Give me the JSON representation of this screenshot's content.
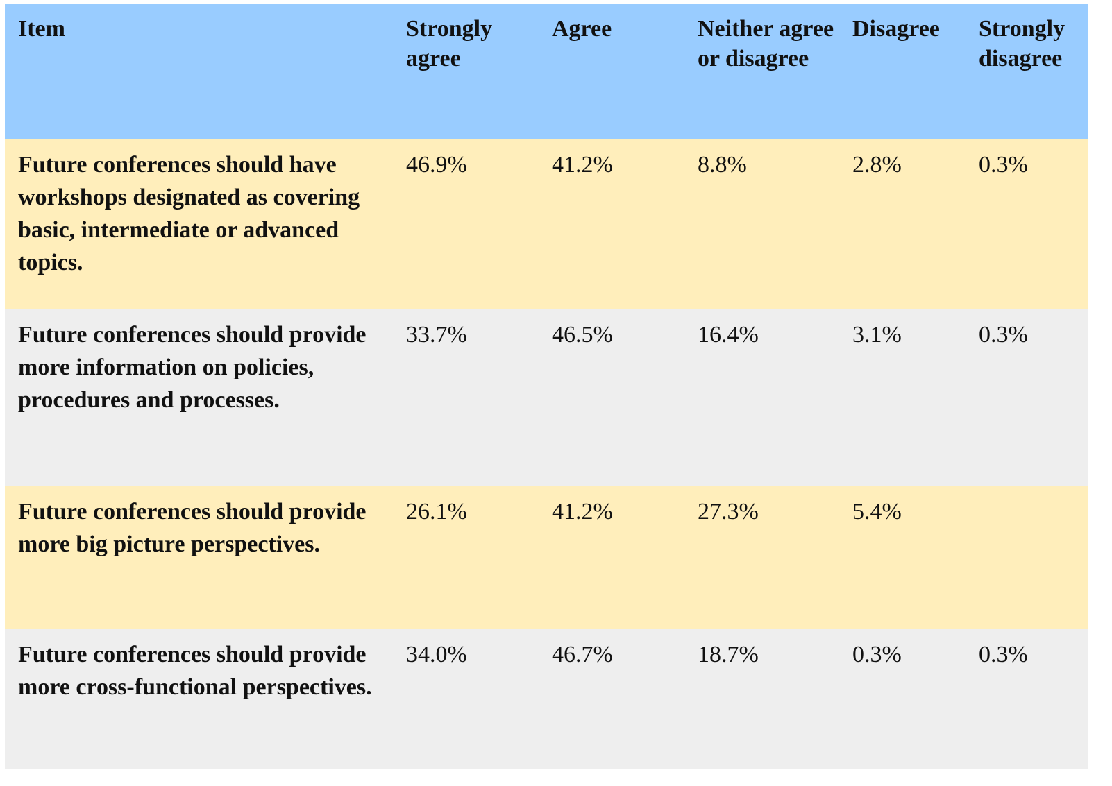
{
  "table": {
    "header": [
      "Item",
      "Strongly agree",
      "Agree",
      "Neither agree or disagree",
      "Disagree",
      "Strongly disagree"
    ],
    "rows": [
      [
        "Future conferences should have workshops designated as covering basic, intermediate or advanced topics.",
        "46.9%",
        "41.2%",
        "8.8%",
        "2.8%",
        "0.3%"
      ],
      [
        "Future conferences should provide more information on policies, procedures and processes.",
        "33.7%",
        "46.5%",
        "16.4%",
        "3.1%",
        "0.3%"
      ],
      [
        "Future conferences should provide more big picture perspectives.",
        "26.1%",
        "41.2%",
        "27.3%",
        "5.4%",
        null
      ],
      [
        "Future conferences should provide more cross-functional perspectives.",
        "34.0%",
        "46.7%",
        "18.7%",
        "0.3%",
        "0.3%"
      ]
    ]
  }
}
